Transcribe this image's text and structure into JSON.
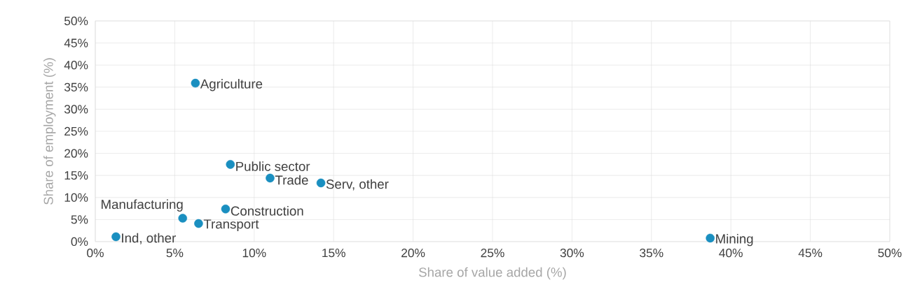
{
  "chart_data": {
    "type": "scatter",
    "xlabel": "Share of value added (%)",
    "ylabel": "Share of employment (%)",
    "x": [
      6.3,
      8.5,
      11.0,
      14.2,
      8.2,
      5.5,
      6.5,
      1.3,
      38.7
    ],
    "values": [
      35.9,
      17.5,
      14.4,
      13.3,
      7.4,
      5.3,
      4.1,
      1.1,
      0.8
    ],
    "color": "#1a8fc0",
    "marker": "circle",
    "grid": true,
    "xlim": [
      0,
      50
    ],
    "ylim": [
      0,
      50
    ],
    "xticks": [
      {
        "value": 0,
        "label": "0%"
      },
      {
        "value": 5,
        "label": "5%"
      },
      {
        "value": 10,
        "label": "10%"
      },
      {
        "value": 15,
        "label": "15%"
      },
      {
        "value": 20,
        "label": "20%"
      },
      {
        "value": 25,
        "label": "25%"
      },
      {
        "value": 30,
        "label": "30%"
      },
      {
        "value": 35,
        "label": "35%"
      },
      {
        "value": 40,
        "label": "40%"
      },
      {
        "value": 45,
        "label": "45%"
      },
      {
        "value": 50,
        "label": "50%"
      }
    ],
    "yticks": [
      {
        "value": 0,
        "label": "0%"
      },
      {
        "value": 5,
        "label": "5%"
      },
      {
        "value": 10,
        "label": "10%"
      },
      {
        "value": 15,
        "label": "15%"
      },
      {
        "value": 20,
        "label": "20%"
      },
      {
        "value": 25,
        "label": "25%"
      },
      {
        "value": 30,
        "label": "30%"
      },
      {
        "value": 35,
        "label": "35%"
      },
      {
        "value": 40,
        "label": "40%"
      },
      {
        "value": 45,
        "label": "45%"
      },
      {
        "value": 50,
        "label": "50%"
      }
    ],
    "annotations": [
      {
        "text": "Agriculture",
        "x": 6.3,
        "y": 35.9
      },
      {
        "text": "Public sector",
        "x": 8.5,
        "y": 17.5
      },
      {
        "text": "Trade",
        "x": 11.0,
        "y": 14.4
      },
      {
        "text": "Serv, other",
        "x": 14.2,
        "y": 13.3
      },
      {
        "text": "Construction",
        "x": 8.2,
        "y": 7.4
      },
      {
        "text": "Manufacturing",
        "x": 5.5,
        "y": 5.3
      },
      {
        "text": "Transport",
        "x": 6.5,
        "y": 4.1
      },
      {
        "text": "Ind, other",
        "x": 1.3,
        "y": 1.1
      },
      {
        "text": "Mining",
        "x": 38.7,
        "y": 0.8
      }
    ]
  }
}
